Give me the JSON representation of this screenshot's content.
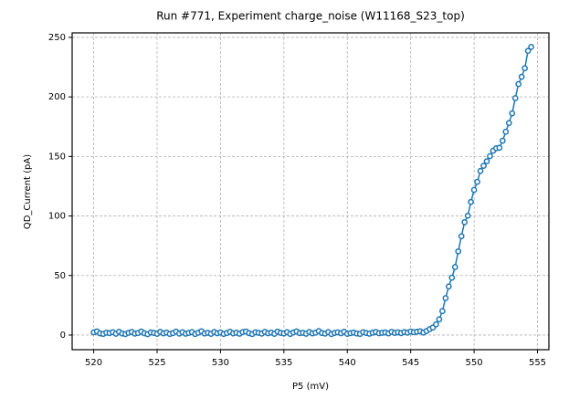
{
  "chart_data": {
    "type": "line",
    "title": "Run #771, Experiment charge_noise (W11168_S23_top)",
    "xlabel": "P5 (mV)",
    "ylabel": "QD_Current (pA)",
    "color": "#1f77b4",
    "grid": true,
    "xlim": [
      518.3,
      555.9
    ],
    "ylim": [
      -12.3,
      253.8
    ],
    "xticks": [
      520,
      525,
      530,
      535,
      540,
      545,
      550,
      555
    ],
    "yticks": [
      0,
      50,
      100,
      150,
      200,
      250
    ],
    "x": [
      520,
      520.25,
      520.5,
      520.75,
      521,
      521.25,
      521.5,
      521.75,
      522,
      522.25,
      522.5,
      522.75,
      523,
      523.25,
      523.5,
      523.75,
      524,
      524.25,
      524.5,
      524.75,
      525,
      525.25,
      525.5,
      525.75,
      526,
      526.25,
      526.5,
      526.75,
      527,
      527.25,
      527.5,
      527.75,
      528,
      528.25,
      528.5,
      528.75,
      529,
      529.25,
      529.5,
      529.75,
      530,
      530.25,
      530.5,
      530.75,
      531,
      531.25,
      531.5,
      531.75,
      532,
      532.25,
      532.5,
      532.75,
      533,
      533.25,
      533.5,
      533.75,
      534,
      534.25,
      534.5,
      534.75,
      535,
      535.25,
      535.5,
      535.75,
      536,
      536.25,
      536.5,
      536.75,
      537,
      537.25,
      537.5,
      537.75,
      538,
      538.25,
      538.5,
      538.75,
      539,
      539.25,
      539.5,
      539.75,
      540,
      540.25,
      540.5,
      540.75,
      541,
      541.25,
      541.5,
      541.75,
      542,
      542.25,
      542.5,
      542.75,
      543,
      543.25,
      543.5,
      543.75,
      544,
      544.25,
      544.5,
      544.75,
      545,
      545.25,
      545.5,
      545.75,
      546,
      546.25,
      546.5,
      546.75,
      547,
      547.25,
      547.5,
      547.75,
      548,
      548.25,
      548.5,
      548.75,
      549,
      549.25,
      549.5,
      549.75,
      550,
      550.25,
      550.5,
      550.75,
      551,
      551.25,
      551.5,
      551.75,
      552,
      552.25,
      552.5,
      552.75,
      553,
      553.25,
      553.5,
      553.75,
      554,
      554.25,
      554.5
    ],
    "values": [
      2.3,
      3.1,
      1.4,
      0.9,
      2.0,
      1.6,
      2.4,
      1.1,
      2.8,
      1.3,
      0.8,
      1.9,
      2.6,
      1.2,
      1.7,
      3.0,
      1.5,
      0.7,
      2.2,
      1.8,
      1.0,
      2.7,
      1.4,
      2.1,
      0.9,
      1.6,
      2.9,
      1.2,
      2.4,
      1.1,
      1.8,
      2.5,
      0.8,
      2.0,
      3.2,
      1.3,
      1.9,
      1.0,
      2.6,
      1.5,
      2.2,
      0.9,
      1.7,
      2.8,
      1.4,
      2.0,
      1.1,
      2.5,
      3.0,
      1.6,
      0.8,
      2.3,
      1.9,
      1.2,
      2.7,
      1.5,
      2.1,
      1.0,
      2.9,
      1.8,
      1.3,
      2.4,
      0.9,
      2.2,
      3.1,
      1.6,
      1.9,
      1.1,
      2.6,
      1.4,
      2.0,
      3.3,
      1.7,
      1.2,
      2.5,
      0.8,
      1.8,
      2.3,
      1.5,
      2.8,
      1.0,
      1.6,
      2.1,
      1.3,
      0.9,
      2.4,
      1.7,
      1.1,
      2.0,
      2.6,
      1.5,
      1.9,
      2.2,
      1.4,
      2.7,
      1.8,
      2.3,
      1.6,
      2.5,
      2.0,
      3.0,
      2.4,
      2.8,
      3.2,
      2.1,
      3.4,
      5.0,
      6.3,
      9.0,
      13.2,
      20.1,
      31.0,
      40.8,
      48.2,
      57.1,
      70.3,
      83.0,
      94.8,
      100.2,
      111.8,
      121.9,
      128.7,
      137.8,
      142.1,
      146.0,
      150.3,
      154.8,
      156.9,
      157.3,
      163.2,
      170.8,
      178.1,
      186.2,
      199.0,
      210.8,
      216.9,
      224.1,
      238.7,
      242.0
    ]
  }
}
